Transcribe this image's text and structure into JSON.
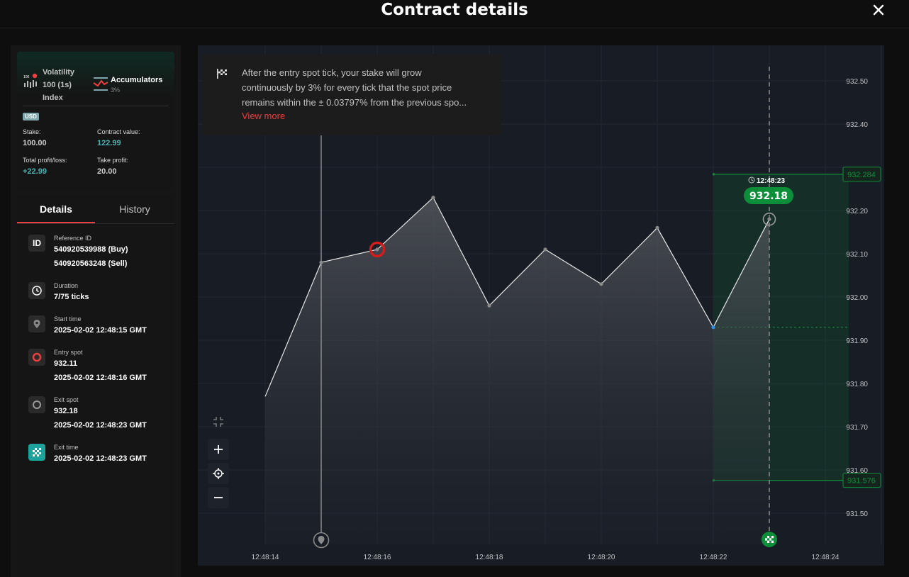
{
  "header": {
    "title": "Contract details",
    "close_icon": "close-icon"
  },
  "summary": {
    "symbol_line1": "Volatility",
    "symbol_line2": "100 (1s)",
    "symbol_line3": "Index",
    "symbol_icon_text": "100",
    "trade_type": "Accumulators",
    "growth_rate": "3%",
    "currency": "USD",
    "stake_label": "Stake:",
    "stake_value": "100.00",
    "contract_value_label": "Contract value:",
    "contract_value": "122.99",
    "profit_label": "Total profit/loss:",
    "profit_value": "+22.99",
    "take_profit_label": "Take profit:",
    "take_profit_value": "20.00"
  },
  "tabs": {
    "details": "Details",
    "history": "History"
  },
  "details": {
    "id_icon_text": "ID",
    "reference_label": "Reference ID",
    "reference_buy": "540920539988 (Buy)",
    "reference_sell": "540920563248 (Sell)",
    "duration_label": "Duration",
    "duration_value": "7/75 ticks",
    "start_label": "Start time",
    "start_value": "2025-02-02 12:48:15 GMT",
    "entry_label": "Entry spot",
    "entry_price": "932.11",
    "entry_time": "2025-02-02 12:48:16 GMT",
    "exit_spot_label": "Exit spot",
    "exit_price": "932.18",
    "exit_spot_time": "2025-02-02 12:48:23 GMT",
    "exit_time_label": "Exit time",
    "exit_time_value": "2025-02-02 12:48:23 GMT"
  },
  "tooltip": {
    "line1": "After the entry spot tick, your stake will grow",
    "line2": "continuously by 3% for every tick that the spot price",
    "line3": "remains within the ± 0.03797% from the previous spo...",
    "view_more": "View more"
  },
  "chart": {
    "current_time": "12:48:23",
    "current_price": "932.18",
    "upper_barrier": "932.284",
    "lower_barrier": "931.576"
  },
  "chart_data": {
    "type": "area",
    "x": [
      "12:48:14",
      "12:48:15",
      "12:48:16",
      "12:48:17",
      "12:48:18",
      "12:48:19",
      "12:48:20",
      "12:48:21",
      "12:48:22",
      "12:48:23"
    ],
    "y": [
      931.77,
      932.08,
      932.11,
      932.23,
      931.98,
      932.11,
      932.03,
      932.16,
      931.93,
      932.18
    ],
    "x_ticks": [
      "12:48:14",
      "12:48:16",
      "12:48:18",
      "12:48:20",
      "12:48:22",
      "12:48:24"
    ],
    "y_ticks": [
      "932.50",
      "932.40",
      "932.20",
      "932.10",
      "932.00",
      "931.90",
      "931.80",
      "931.70",
      "931.60",
      "931.50"
    ],
    "ylim": [
      931.45,
      932.55
    ],
    "grid": true,
    "colors": {
      "line": "#e6e6e6",
      "barrier": "#0d8f3a",
      "entry": "#d41c1c",
      "background": "#181c25"
    }
  }
}
